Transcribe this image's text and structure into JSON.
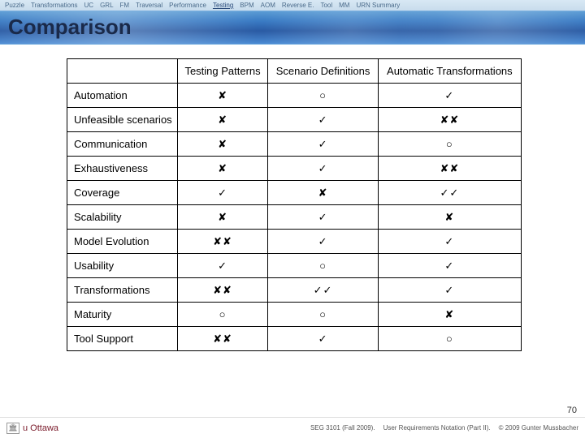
{
  "nav": {
    "items": [
      "Puzzle",
      "Transformations",
      "UC",
      "GRL",
      "FM",
      "Traversal",
      "Performance",
      "Testing",
      "BPM",
      "AOM",
      "Reverse E.",
      "Tool",
      "MM",
      "URN Summary"
    ],
    "active_index": 7
  },
  "title": "Comparison",
  "table": {
    "columns": [
      "Testing Patterns",
      "Scenario Definitions",
      "Automatic Transformations"
    ],
    "rows": [
      {
        "label": "Automation",
        "cells": [
          "✘",
          "○",
          "✓"
        ]
      },
      {
        "label": "Unfeasible scenarios",
        "cells": [
          "✘",
          "✓",
          "✘✘"
        ]
      },
      {
        "label": "Communication",
        "cells": [
          "✘",
          "✓",
          "○"
        ]
      },
      {
        "label": "Exhaustiveness",
        "cells": [
          "✘",
          "✓",
          "✘✘"
        ]
      },
      {
        "label": "Coverage",
        "cells": [
          "✓",
          "✘",
          "✓✓"
        ]
      },
      {
        "label": "Scalability",
        "cells": [
          "✘",
          "✓",
          "✘"
        ]
      },
      {
        "label": "Model Evolution",
        "cells": [
          "✘✘",
          "✓",
          "✓"
        ]
      },
      {
        "label": "Usability",
        "cells": [
          "✓",
          "○",
          "✓"
        ]
      },
      {
        "label": "Transformations",
        "cells": [
          "✘✘",
          "✓✓",
          "✓"
        ]
      },
      {
        "label": "Maturity",
        "cells": [
          "○",
          "○",
          "✘"
        ]
      },
      {
        "label": "Tool Support",
        "cells": [
          "✘✘",
          "✓",
          "○"
        ]
      }
    ]
  },
  "pagenum": "70",
  "footer": {
    "uni": "u Ottawa",
    "course": "SEG 3101 (Fall 2009).",
    "subject": "User Requirements Notation (Part II).",
    "copyright": "© 2009 Gunter Mussbacher"
  }
}
